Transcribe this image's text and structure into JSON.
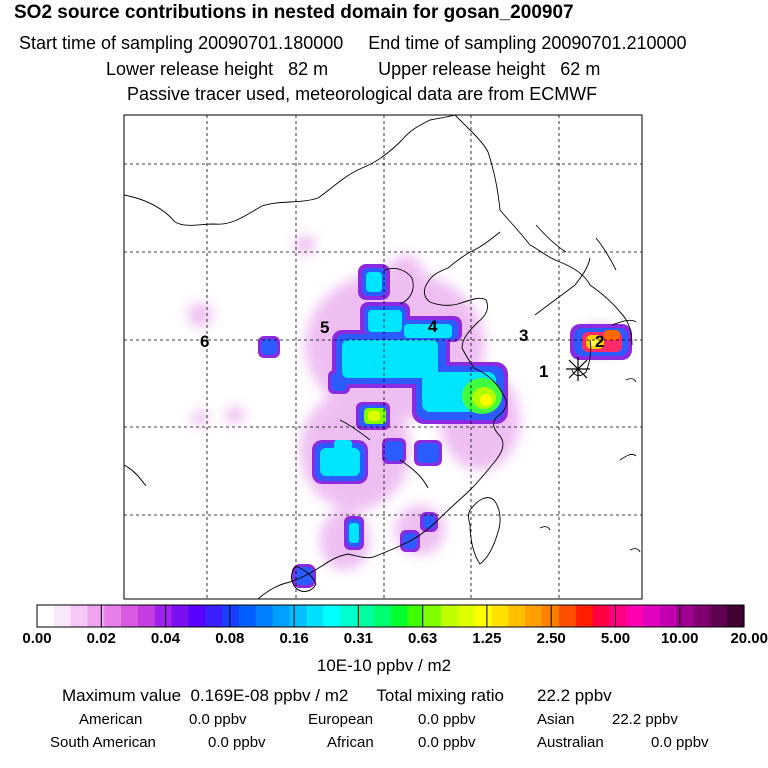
{
  "header": {
    "title": "SO2 source contributions in nested domain for gosan_200907",
    "start_label": "Start time of sampling",
    "start_value": "20090701.180000",
    "end_label": "End time of sampling",
    "end_value": "20090701.210000",
    "lower_label": "Lower release height",
    "lower_value": "82 m",
    "upper_label": "Upper release height",
    "upper_value": "62 m",
    "note": "Passive tracer used, meteorological data are from ECMWF"
  },
  "map": {
    "sectors": [
      "1",
      "2",
      "3",
      "4",
      "5",
      "6"
    ],
    "receptor_marker": "asterisk-marker"
  },
  "colorbar": {
    "ticks": [
      "0.00",
      "0.02",
      "0.04",
      "0.08",
      "0.16",
      "0.31",
      "0.63",
      "1.25",
      "2.50",
      "5.00",
      "10.00",
      "20.00"
    ],
    "colors": [
      "#ffffff",
      "#fbe8fb",
      "#f5c8f5",
      "#eea4ee",
      "#e680e8",
      "#d95ae0",
      "#c63ce0",
      "#a020f0",
      "#7a10f0",
      "#5a00ff",
      "#3a20ff",
      "#1a40ff",
      "#0060ff",
      "#0080ff",
      "#00a0ff",
      "#00c0ff",
      "#00e0ff",
      "#00ffff",
      "#00ffd0",
      "#00ffa0",
      "#00ff70",
      "#00ff30",
      "#40ff00",
      "#80ff00",
      "#c0ff00",
      "#e0ff00",
      "#ffff00",
      "#ffe000",
      "#ffc000",
      "#ffa000",
      "#ff8000",
      "#ff5000",
      "#ff2000",
      "#ff0040",
      "#ff0080",
      "#ff00b0",
      "#e000c0",
      "#c000b0",
      "#a00090",
      "#800070",
      "#600050",
      "#400030"
    ],
    "units": "10E-10 ppbv / m2"
  },
  "summary": {
    "max_label": "Maximum value",
    "max_value": "0.169E-08 ppbv / m2",
    "total_label": "Total mixing ratio",
    "total_value": "22.2 ppbv",
    "regions": [
      {
        "name": "American",
        "value": "0.0 ppbv"
      },
      {
        "name": "European",
        "value": "0.0 ppbv"
      },
      {
        "name": "Asian",
        "value": "22.2 ppbv"
      },
      {
        "name": "South American",
        "value": "0.0 ppbv"
      },
      {
        "name": "African",
        "value": "0.0 ppbv"
      },
      {
        "name": "Australian",
        "value": "0.0 ppbv"
      }
    ]
  }
}
